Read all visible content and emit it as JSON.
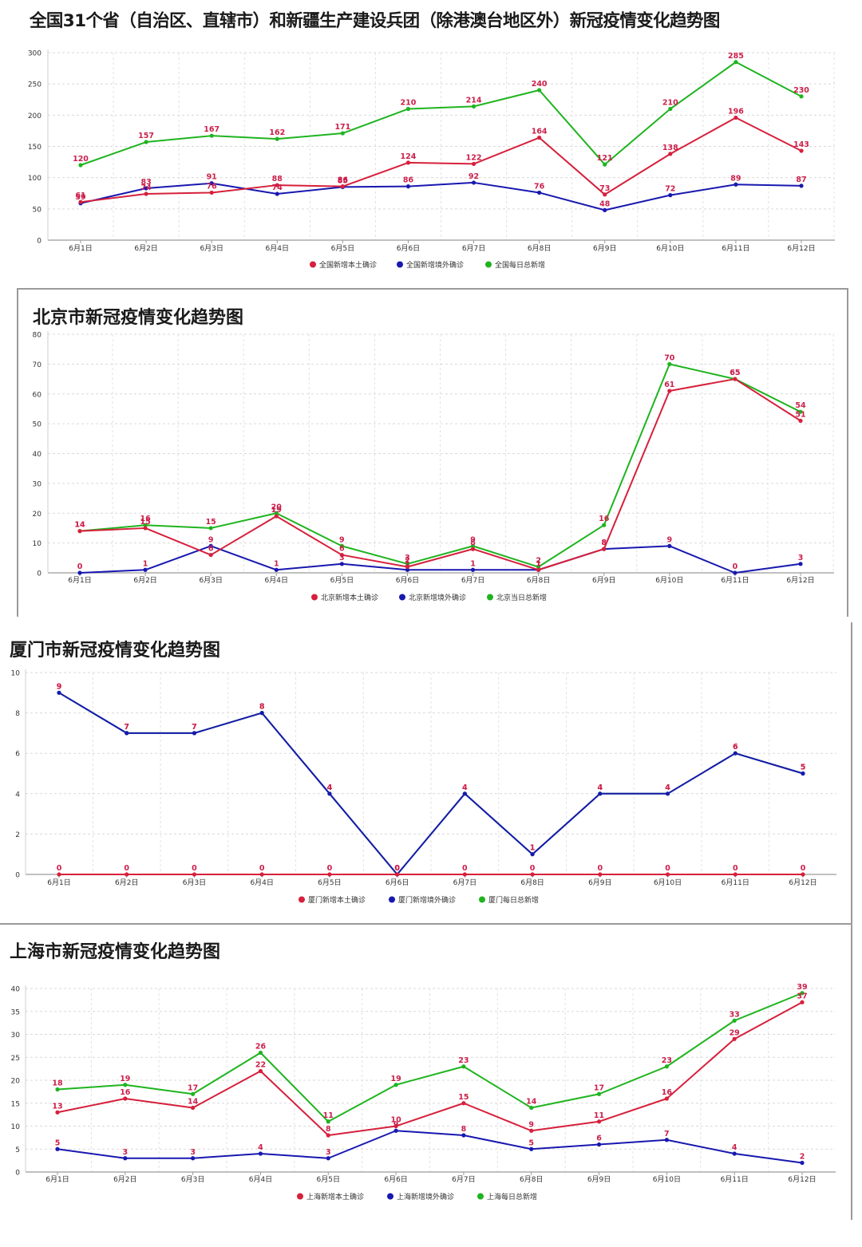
{
  "chart_data": [
    {
      "type": "line",
      "title": "全国31个省（自治区、直辖市）和新疆生产建设兵团（除港澳台地区外）新冠疫情变化趋势图",
      "categories": [
        "6月1日",
        "6月2日",
        "6月3日",
        "6月4日",
        "6月5日",
        "6月6日",
        "6月7日",
        "6月8日",
        "6月9日",
        "6月10日",
        "6月11日",
        "6月12日"
      ],
      "ylim": [
        0,
        300
      ],
      "yticks": [
        0,
        50,
        100,
        150,
        200,
        250,
        300
      ],
      "grid": true,
      "legend": "bottom",
      "series": [
        {
          "name": "全国新增本土确诊",
          "color": "#d6203c",
          "values": [
            61,
            74,
            76,
            88,
            86,
            124,
            122,
            164,
            73,
            138,
            196,
            143
          ]
        },
        {
          "name": "全国新增境外确诊",
          "color": "#1818b0",
          "values": [
            59,
            83,
            91,
            74,
            85,
            86,
            92,
            76,
            48,
            72,
            89,
            87
          ]
        },
        {
          "name": "全国每日总新增",
          "color": "#1fb41f",
          "values": [
            120,
            157,
            167,
            162,
            171,
            210,
            214,
            240,
            121,
            210,
            285,
            230
          ]
        }
      ]
    },
    {
      "type": "line",
      "title": "北京市新冠疫情变化趋势图",
      "categories": [
        "6月1日",
        "6月2日",
        "6月3日",
        "6月4日",
        "6月5日",
        "6月6日",
        "6月7日",
        "6月8日",
        "6月9日",
        "6月10日",
        "6月11日",
        "6月12日"
      ],
      "ylim": [
        0,
        80
      ],
      "yticks": [
        0,
        10,
        20,
        30,
        40,
        50,
        60,
        70,
        80
      ],
      "grid": true,
      "legend": "bottom",
      "series": [
        {
          "name": "北京新增本土确诊",
          "color": "#d6203c",
          "values": [
            14,
            15,
            6,
            19,
            6,
            2,
            8,
            1,
            8,
            61,
            65,
            51
          ]
        },
        {
          "name": "北京新增境外确诊",
          "color": "#1818b0",
          "values": [
            0,
            1,
            9,
            1,
            3,
            1,
            1,
            1,
            8,
            9,
            0,
            3
          ]
        },
        {
          "name": "北京当日总新增",
          "color": "#1fb41f",
          "values": [
            14,
            16,
            15,
            20,
            9,
            3,
            9,
            2,
            16,
            70,
            65,
            54
          ]
        }
      ]
    },
    {
      "type": "line",
      "title": "厦门市新冠疫情变化趋势图",
      "categories": [
        "6月1日",
        "6月2日",
        "6月3日",
        "6月4日",
        "6月5日",
        "6月6日",
        "6月7日",
        "6月8日",
        "6月9日",
        "6月10日",
        "6月11日",
        "6月12日"
      ],
      "ylim": [
        0,
        10
      ],
      "yticks": [
        0,
        2,
        4,
        6,
        8,
        10
      ],
      "grid": true,
      "legend": "bottom",
      "series": [
        {
          "name": "厦门新增本土确诊",
          "color": "#d6203c",
          "values": [
            0,
            0,
            0,
            0,
            0,
            0,
            0,
            0,
            0,
            0,
            0,
            0
          ]
        },
        {
          "name": "厦门新增境外确诊",
          "color": "#1818b0",
          "values": [
            9,
            7,
            7,
            8,
            4,
            0,
            4,
            1,
            4,
            4,
            6,
            5
          ]
        },
        {
          "name": "厦门每日总新增",
          "color": "#1fb41f",
          "values": [
            9,
            7,
            7,
            8,
            4,
            0,
            4,
            1,
            4,
            4,
            6,
            5
          ]
        }
      ]
    },
    {
      "type": "line",
      "title": "上海市新冠疫情变化趋势图",
      "categories": [
        "6月1日",
        "6月2日",
        "6月3日",
        "6月4日",
        "6月5日",
        "6月6日",
        "6月7日",
        "6月8日",
        "6月9日",
        "6月10日",
        "6月11日",
        "6月12日"
      ],
      "ylim": [
        0,
        40
      ],
      "yticks": [
        0,
        5,
        10,
        15,
        20,
        25,
        30,
        35,
        40
      ],
      "grid": true,
      "legend": "bottom",
      "series": [
        {
          "name": "上海新增本土确诊",
          "color": "#d6203c",
          "values": [
            13,
            16,
            14,
            22,
            8,
            10,
            15,
            9,
            11,
            16,
            29,
            37
          ]
        },
        {
          "name": "上海新增境外确诊",
          "color": "#1818b0",
          "values": [
            5,
            3,
            3,
            4,
            3,
            9,
            8,
            5,
            6,
            7,
            4,
            2
          ]
        },
        {
          "name": "上海每日总新增",
          "color": "#1fb41f",
          "values": [
            18,
            19,
            17,
            26,
            11,
            19,
            23,
            14,
            17,
            23,
            33,
            39
          ]
        }
      ]
    }
  ]
}
